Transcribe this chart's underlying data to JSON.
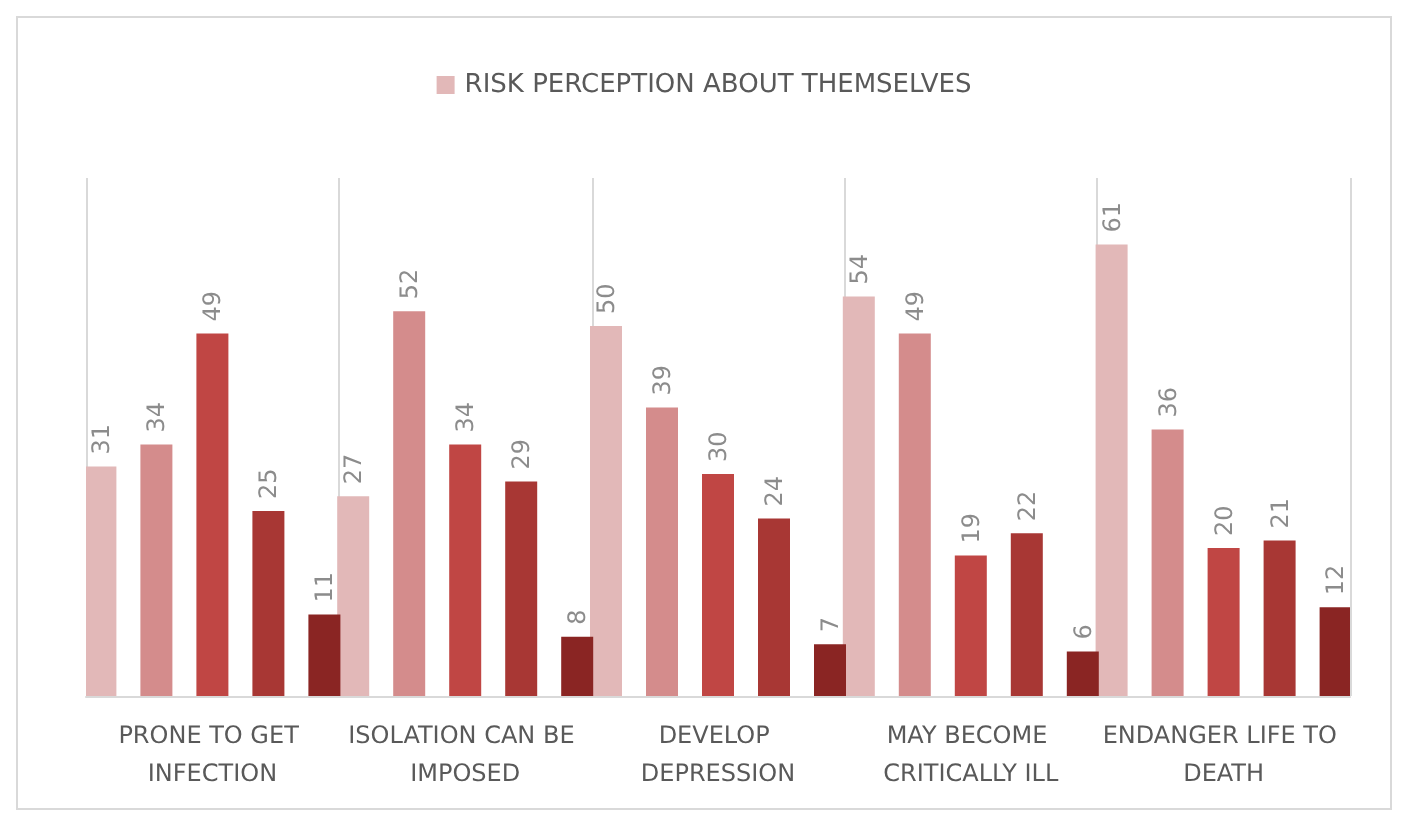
{
  "chart_data": {
    "type": "bar",
    "categories": [
      "PRONE TO GET INFECTION",
      "ISOLATION CAN BE IMPOSED",
      "DEVELOP DEPRESSION",
      "MAY BECOME CRITICALLY ILL",
      "ENDANGER LIFE TO DEATH"
    ],
    "series": [
      {
        "name": "RISK PERCEPTION ABOUT THEMSELVES",
        "color": "#e2b8b8",
        "values": [
          31,
          27,
          50,
          54,
          61
        ]
      },
      {
        "color": "#d48c8c",
        "values": [
          34,
          52,
          39,
          49,
          36
        ]
      },
      {
        "color": "#c04644",
        "values": [
          49,
          34,
          30,
          19,
          20
        ]
      },
      {
        "color": "#a83734",
        "values": [
          25,
          29,
          24,
          22,
          21
        ]
      },
      {
        "color": "#8a2523",
        "values": [
          11,
          8,
          7,
          6,
          12
        ]
      }
    ],
    "data_labels": true,
    "grid": "x",
    "legend": "top"
  }
}
